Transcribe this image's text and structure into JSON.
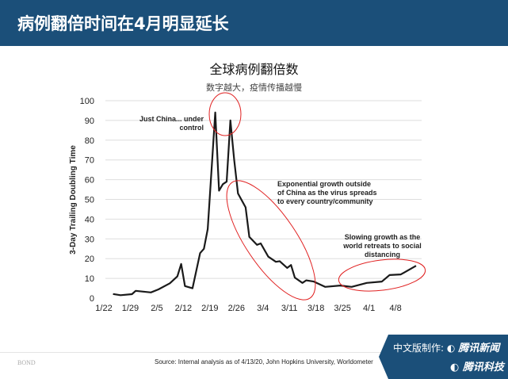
{
  "header": {
    "title": "病例翻倍时间在4月明显延长"
  },
  "chart_data": {
    "type": "line",
    "title": "全球病例翻倍数",
    "subtitle": "数字越大，疫情传播越慢",
    "ylabel": "3-Day Trailing Doubling Time",
    "xlabel": "",
    "ylim": [
      0,
      100
    ],
    "yticks": [
      0,
      10,
      20,
      30,
      40,
      50,
      60,
      70,
      80,
      90,
      100
    ],
    "xticks": [
      "1/22",
      "1/29",
      "2/5",
      "2/12",
      "2/19",
      "2/26",
      "3/4",
      "3/11",
      "3/18",
      "3/25",
      "4/1",
      "4/8"
    ],
    "grid": "horizontal",
    "line_color": "#1a1a1a",
    "annotation_color": "#e02020",
    "x": [
      "1/24",
      "1/26",
      "1/29",
      "1/30",
      "2/3",
      "2/5",
      "2/8",
      "2/10",
      "2/11",
      "2/12",
      "2/14",
      "2/16",
      "2/17",
      "2/18",
      "2/20",
      "2/21",
      "2/22",
      "2/23",
      "2/24",
      "2/25",
      "2/26",
      "2/28",
      "2/29",
      "3/2",
      "3/3",
      "3/5",
      "3/7",
      "3/8",
      "3/10",
      "3/11",
      "3/12",
      "3/14",
      "3/15",
      "3/17",
      "3/20",
      "3/24",
      "3/27",
      "3/31",
      "4/4",
      "4/6",
      "4/9",
      "4/13"
    ],
    "values": [
      2.1,
      1.5,
      2,
      3.7,
      2.9,
      4.4,
      7.5,
      11,
      17.3,
      6.1,
      5,
      22.8,
      25,
      35,
      94,
      54.4,
      57.7,
      59,
      90,
      70,
      53,
      46,
      31,
      27,
      27.7,
      21,
      18.4,
      18.7,
      15.3,
      16.8,
      10.4,
      7.7,
      9,
      8.4,
      5.7,
      6.4,
      5.7,
      7.7,
      8.4,
      11.7,
      12,
      16.4
    ],
    "annotations": [
      {
        "text": [
          "Just China... under",
          "control"
        ]
      },
      {
        "text": [
          "Exponential growth outside",
          "of China as the virus spreads",
          "to every country/community"
        ]
      },
      {
        "text": [
          "Slowing growth as the",
          "world retreats to social",
          "distancing"
        ]
      }
    ]
  },
  "footer": {
    "left_logo": "BOND",
    "source": "Source: Internal analysis as of 4/13/20, John Hopkins University, Worldometer",
    "credit_label": "中文版制作:",
    "brand1": "腾讯新闻",
    "brand2": "腾讯科技"
  }
}
